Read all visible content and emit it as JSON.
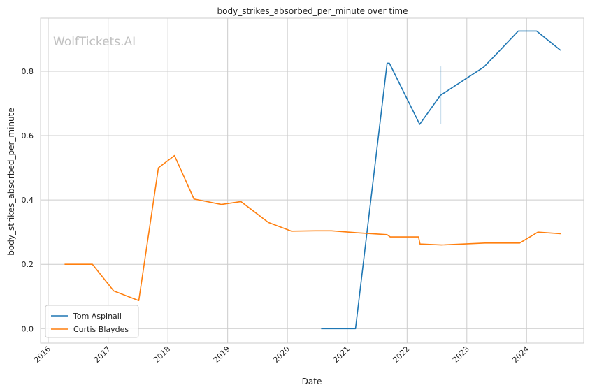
{
  "chart_data": {
    "type": "line",
    "title": "body_strikes_absorbed_per_minute over time",
    "xlabel": "Date",
    "ylabel": "body_strikes_absorbed_per_minute",
    "watermark": "WolfTickets.AI",
    "xlim": [
      "2015-11-15",
      "2024-12-15"
    ],
    "ylim": [
      -0.045,
      0.965
    ],
    "x_ticks": [
      "2016",
      "2017",
      "2018",
      "2019",
      "2020",
      "2021",
      "2022",
      "2023",
      "2024"
    ],
    "y_ticks": [
      "0.0",
      "0.2",
      "0.4",
      "0.6",
      "0.8"
    ],
    "grid": true,
    "legend_position": "lower-left",
    "series": [
      {
        "name": "Tom Aspinall",
        "color": "#1f77b4",
        "points": [
          {
            "x": "2020-07-25",
            "y": 0.0
          },
          {
            "x": "2021-02-20",
            "y": 0.0
          },
          {
            "x": "2021-09-01",
            "y": 0.825
          },
          {
            "x": "2021-09-15",
            "y": 0.825
          },
          {
            "x": "2022-03-19",
            "y": 0.635
          },
          {
            "x": "2022-07-23",
            "y": 0.725
          },
          {
            "x": "2023-04-15",
            "y": 0.813
          },
          {
            "x": "2023-07-22",
            "y": 0.865
          },
          {
            "x": "2023-11-11",
            "y": 0.925
          },
          {
            "x": "2024-03-02",
            "y": 0.925
          },
          {
            "x": "2024-07-27",
            "y": 0.865
          }
        ]
      },
      {
        "name": "Curtis Blaydes",
        "color": "#ff7f0e",
        "points": [
          {
            "x": "2016-04-10",
            "y": 0.2
          },
          {
            "x": "2016-09-27",
            "y": 0.2
          },
          {
            "x": "2017-02-04",
            "y": 0.117
          },
          {
            "x": "2017-07-07",
            "y": 0.087
          },
          {
            "x": "2017-11-04",
            "y": 0.5
          },
          {
            "x": "2018-02-10",
            "y": 0.538
          },
          {
            "x": "2018-06-09",
            "y": 0.403
          },
          {
            "x": "2018-11-24",
            "y": 0.386
          },
          {
            "x": "2019-03-23",
            "y": 0.395
          },
          {
            "x": "2019-09-07",
            "y": 0.33
          },
          {
            "x": "2020-01-25",
            "y": 0.303
          },
          {
            "x": "2020-06-20",
            "y": 0.304
          },
          {
            "x": "2020-09-26",
            "y": 0.304
          },
          {
            "x": "2021-02-27",
            "y": 0.298
          },
          {
            "x": "2021-09-01",
            "y": 0.292
          },
          {
            "x": "2021-09-20",
            "y": 0.285
          },
          {
            "x": "2022-03-12",
            "y": 0.285
          },
          {
            "x": "2022-03-21",
            "y": 0.263
          },
          {
            "x": "2022-07-30",
            "y": 0.26
          },
          {
            "x": "2023-04-22",
            "y": 0.266
          },
          {
            "x": "2023-11-20",
            "y": 0.266
          },
          {
            "x": "2024-03-10",
            "y": 0.3
          },
          {
            "x": "2024-07-27",
            "y": 0.295
          }
        ]
      }
    ],
    "annotations": [
      {
        "kind": "vertical-marker",
        "x": "2022-07-27",
        "y_from": 0.635,
        "y_to": 0.815,
        "color": "#1f77b4"
      }
    ]
  }
}
